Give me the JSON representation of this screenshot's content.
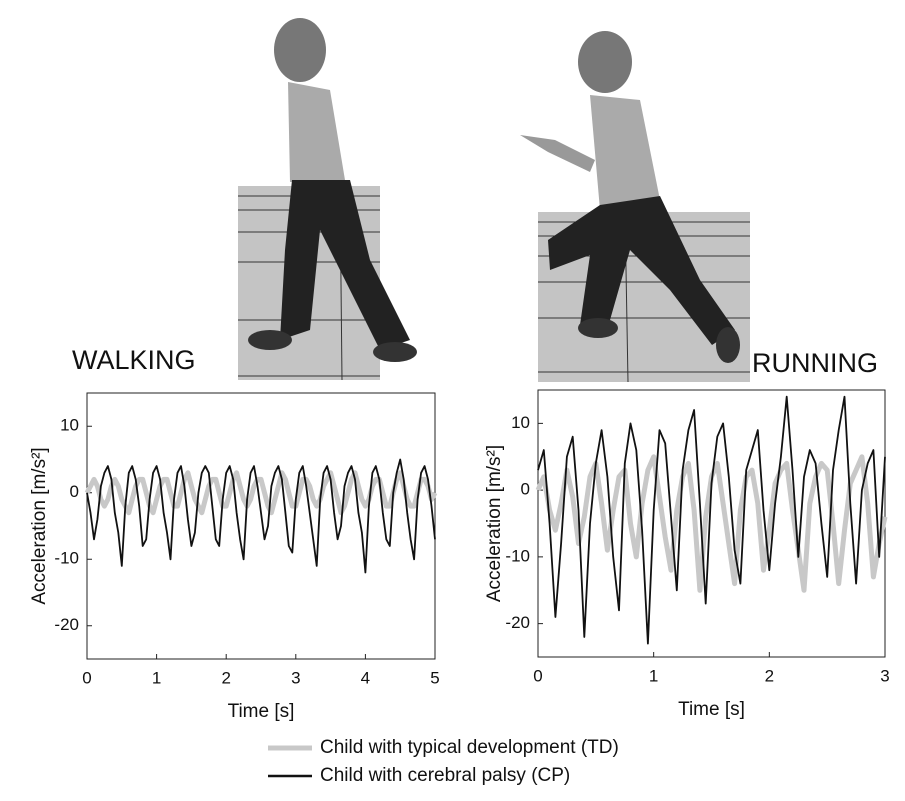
{
  "chart_data": [
    {
      "type": "line",
      "title": "WALKING",
      "xlabel": "Time [s]",
      "ylabel": "Acceleration [m/s²]",
      "x": [
        0,
        0.05,
        0.1,
        0.15,
        0.2,
        0.25,
        0.3,
        0.35,
        0.4,
        0.45,
        0.5,
        0.55,
        0.6,
        0.65,
        0.7,
        0.75,
        0.8,
        0.85,
        0.9,
        0.95,
        1,
        1.05,
        1.1,
        1.15,
        1.2,
        1.25,
        1.3,
        1.35,
        1.4,
        1.45,
        1.5,
        1.55,
        1.6,
        1.65,
        1.7,
        1.75,
        1.8,
        1.85,
        1.9,
        1.95,
        2,
        2.05,
        2.1,
        2.15,
        2.2,
        2.25,
        2.3,
        2.35,
        2.4,
        2.45,
        2.5,
        2.55,
        2.6,
        2.65,
        2.7,
        2.75,
        2.8,
        2.85,
        2.9,
        2.95,
        3,
        3.05,
        3.1,
        3.15,
        3.2,
        3.25,
        3.3,
        3.35,
        3.4,
        3.45,
        3.5,
        3.55,
        3.6,
        3.65,
        3.7,
        3.75,
        3.8,
        3.85,
        3.9,
        3.95,
        4,
        4.05,
        4.1,
        4.15,
        4.2,
        4.25,
        4.3,
        4.35,
        4.4,
        4.45,
        4.5,
        4.55,
        4.6,
        4.65,
        4.7,
        4.75,
        4.8,
        4.85,
        4.9,
        4.95,
        5
      ],
      "series": [
        {
          "name": "Child with typical development (TD)",
          "color": "#c8c8c8",
          "values": [
            0,
            1,
            2,
            1,
            -1,
            -2,
            -1,
            1,
            2,
            1,
            -1,
            -2,
            -3,
            -1,
            1,
            2,
            2,
            0,
            -2,
            -3,
            -1,
            1,
            2,
            2,
            0,
            -2,
            -2,
            0,
            2,
            3,
            1,
            -1,
            -2,
            -3,
            -1,
            1,
            2,
            2,
            0,
            -2,
            -2,
            0,
            2,
            3,
            1,
            -1,
            -2,
            -1,
            1,
            2,
            2,
            0,
            -2,
            -3,
            -1,
            1,
            3,
            2,
            0,
            -2,
            -2,
            0,
            2,
            2,
            1,
            -1,
            -2,
            -1,
            1,
            2,
            3,
            1,
            -1,
            -3,
            -2,
            0,
            2,
            3,
            1,
            -1,
            -2,
            -1,
            1,
            2,
            2,
            0,
            -2,
            -2,
            0,
            2,
            3,
            1,
            -1,
            -2,
            -2,
            0,
            2,
            2,
            1,
            -1,
            0
          ]
        },
        {
          "name": "Child with cerebral palsy (CP)",
          "color": "#111111",
          "values": [
            0,
            -3,
            -7,
            -4,
            1,
            3,
            4,
            2,
            -3,
            -6,
            -11,
            -2,
            3,
            4,
            2,
            -2,
            -8,
            -7,
            -1,
            3,
            4,
            2,
            -3,
            -6,
            -10,
            -1,
            3,
            4,
            1,
            -4,
            -8,
            -6,
            0,
            3,
            4,
            3,
            -2,
            -7,
            -8,
            -1,
            3,
            4,
            2,
            -3,
            -7,
            -10,
            -1,
            3,
            4,
            1,
            -3,
            -7,
            -5,
            1,
            3,
            4,
            2,
            -3,
            -8,
            -9,
            -1,
            3,
            4,
            1,
            -3,
            -7,
            -11,
            -1,
            3,
            4,
            2,
            -3,
            -7,
            -5,
            1,
            3,
            4,
            2,
            -3,
            -6,
            -12,
            -2,
            3,
            4,
            2,
            -3,
            -7,
            -8,
            0,
            3,
            5,
            2,
            -3,
            -7,
            -10,
            -1,
            3,
            4,
            2,
            -2,
            -7
          ]
        }
      ],
      "xlim": [
        0,
        5
      ],
      "xticks": [
        0,
        1,
        2,
        3,
        4,
        5
      ],
      "ylim": [
        -25,
        15
      ],
      "yticks": [
        -20,
        -10,
        0,
        10
      ]
    },
    {
      "type": "line",
      "title": "RUNNING",
      "xlabel": "Time [s]",
      "ylabel": "Acceleration [m/s²]",
      "x": [
        0,
        0.05,
        0.1,
        0.15,
        0.2,
        0.25,
        0.3,
        0.35,
        0.4,
        0.45,
        0.5,
        0.55,
        0.6,
        0.65,
        0.7,
        0.75,
        0.8,
        0.85,
        0.9,
        0.95,
        1,
        1.05,
        1.1,
        1.15,
        1.2,
        1.25,
        1.3,
        1.35,
        1.4,
        1.45,
        1.5,
        1.55,
        1.6,
        1.65,
        1.7,
        1.75,
        1.8,
        1.85,
        1.9,
        1.95,
        2,
        2.05,
        2.1,
        2.15,
        2.2,
        2.25,
        2.3,
        2.35,
        2.4,
        2.45,
        2.5,
        2.55,
        2.6,
        2.65,
        2.7,
        2.75,
        2.8,
        2.85,
        2.9,
        2.95,
        3
      ],
      "series": [
        {
          "color": "#c8c8c8",
          "values": [
            0,
            2,
            -3,
            -6,
            -2,
            3,
            -1,
            -8,
            -4,
            2,
            4,
            -2,
            -9,
            -3,
            2,
            3,
            -5,
            -10,
            -2,
            3,
            5,
            -1,
            -7,
            -12,
            -3,
            2,
            4,
            -3,
            -15,
            -4,
            2,
            4,
            -2,
            -8,
            -14,
            -3,
            2,
            3,
            -2,
            -12,
            -6,
            1,
            3,
            4,
            -3,
            -9,
            -15,
            -2,
            2,
            4,
            3,
            -5,
            -14,
            -6,
            1,
            3,
            5,
            -2,
            -13,
            -8,
            -4
          ]
        },
        {
          "color": "#111111",
          "values": [
            3,
            6,
            -5,
            -19,
            -8,
            5,
            8,
            -3,
            -22,
            -5,
            4,
            9,
            2,
            -10,
            -18,
            4,
            10,
            6,
            -6,
            -23,
            -3,
            9,
            7,
            -4,
            -15,
            3,
            9,
            12,
            -2,
            -17,
            1,
            8,
            10,
            2,
            -9,
            -14,
            3,
            6,
            9,
            -3,
            -12,
            -2,
            5,
            14,
            3,
            -10,
            2,
            6,
            4,
            -5,
            -13,
            3,
            9,
            14,
            -2,
            -14,
            0,
            4,
            6,
            -10,
            5
          ]
        }
      ],
      "xlim": [
        0,
        3
      ],
      "xticks": [
        0,
        1,
        2,
        3
      ],
      "ylim": [
        -25,
        15
      ],
      "yticks": [
        -20,
        -10,
        0,
        10
      ]
    }
  ]
}
